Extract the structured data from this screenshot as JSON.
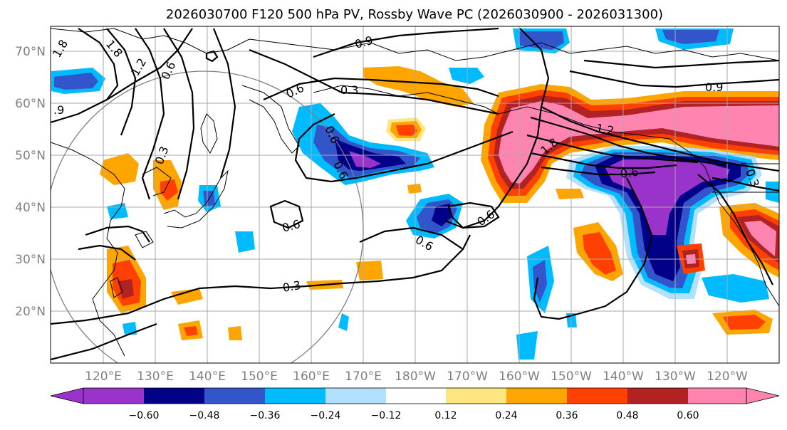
{
  "title": "2026030700 F120 500 hPa PV, Rossby Wave PC (2026030900 - 2026031300)",
  "lat_labels": [
    "70°N",
    "60°N",
    "50°N",
    "40°N",
    "30°N",
    "20°N"
  ],
  "lon_labels": [
    "120°E",
    "130°E",
    "140°E",
    "150°E",
    "160°E",
    "170°E",
    "180°W",
    "170°W",
    "160°W",
    "150°W",
    "140°W",
    "130°W",
    "120°W"
  ],
  "contour_labels": [
    "1.8",
    "1.8",
    "1.2",
    ".9",
    "0.6",
    "0.3",
    "0.6",
    "0.3",
    "0.9",
    "0.9",
    "0.6",
    "0.6",
    "1.2",
    "1.8",
    "0.6",
    "0.6",
    "0.6",
    "0.3",
    "0.3",
    "0.6"
  ],
  "colorbar": {
    "ticks": [
      "−0.60",
      "−0.48",
      "−0.36",
      "−0.24",
      "−0.12",
      "0.12",
      "0.24",
      "0.36",
      "0.48",
      "0.60"
    ],
    "colors": [
      "#9933cc",
      "#000088",
      "#3355cc",
      "#00bbff",
      "#b3e0ff",
      "#ffffff",
      "#ffe680",
      "#ffa500",
      "#ff4000",
      "#b22222",
      "#ff85b0"
    ]
  },
  "palette": {
    "purple": "#9933cc",
    "navy": "#000088",
    "blue": "#3355cc",
    "cyan": "#00bbff",
    "lightblue": "#b3e0ff",
    "yellow": "#ffe680",
    "orange": "#ffa500",
    "red": "#ff4000",
    "darkred": "#b22222",
    "pink": "#ff85b0"
  }
}
